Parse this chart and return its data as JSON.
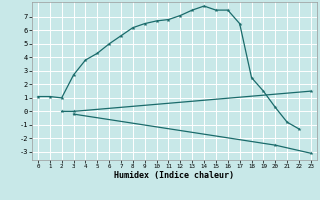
{
  "xlabel": "Humidex (Indice chaleur)",
  "bg_color": "#c8e8e8",
  "line_color": "#1a6b6b",
  "grid_color": "#ffffff",
  "xlim": [
    -0.5,
    23.5
  ],
  "ylim": [
    -3.6,
    8.1
  ],
  "xticks": [
    0,
    1,
    2,
    3,
    4,
    5,
    6,
    7,
    8,
    9,
    10,
    11,
    12,
    13,
    14,
    15,
    16,
    17,
    18,
    19,
    20,
    21,
    22,
    23
  ],
  "yticks": [
    -3,
    -2,
    -1,
    0,
    1,
    2,
    3,
    4,
    5,
    6,
    7
  ],
  "line1_x": [
    0,
    1,
    2,
    3,
    4,
    5,
    6,
    7,
    8,
    9,
    10,
    11,
    12,
    13,
    14,
    15,
    16,
    17,
    18,
    19,
    20,
    21,
    22
  ],
  "line1_y": [
    1.1,
    1.1,
    1.0,
    2.7,
    3.8,
    4.3,
    5.0,
    5.6,
    6.2,
    6.5,
    6.7,
    6.8,
    7.1,
    7.5,
    7.8,
    7.5,
    7.5,
    6.5,
    2.5,
    1.5,
    0.3,
    -0.8,
    -1.3
  ],
  "line2_x": [
    2,
    3,
    23
  ],
  "line2_y": [
    0.0,
    0.0,
    1.5
  ],
  "line3_x": [
    3,
    20,
    23
  ],
  "line3_y": [
    -0.2,
    -2.5,
    -3.1
  ]
}
